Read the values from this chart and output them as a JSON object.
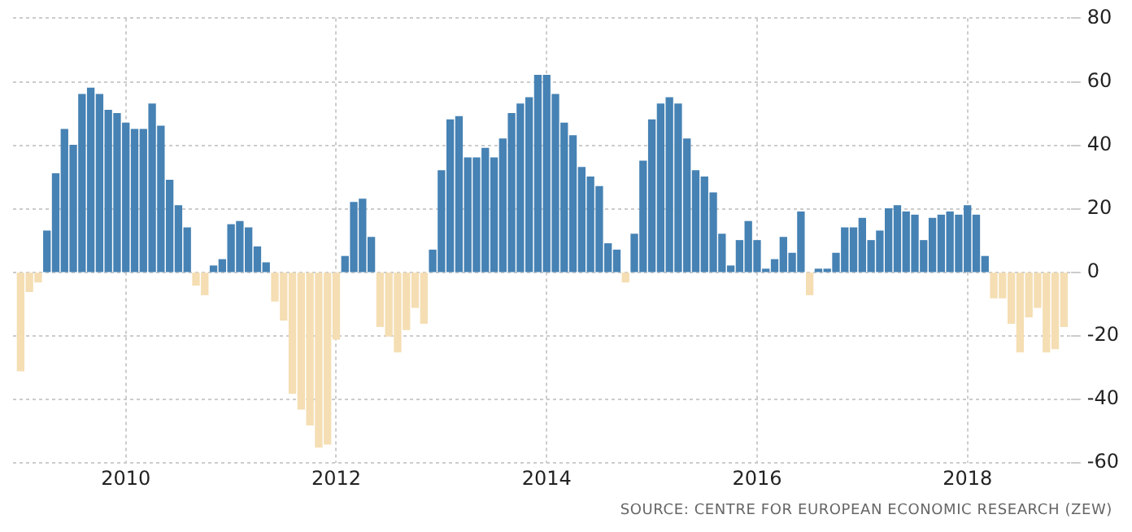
{
  "chart_data": {
    "type": "bar",
    "x": [
      "2009-01",
      "2009-02",
      "2009-03",
      "2009-04",
      "2009-05",
      "2009-06",
      "2009-07",
      "2009-08",
      "2009-09",
      "2009-10",
      "2009-11",
      "2009-12",
      "2010-01",
      "2010-02",
      "2010-03",
      "2010-04",
      "2010-05",
      "2010-06",
      "2010-07",
      "2010-08",
      "2010-09",
      "2010-10",
      "2010-11",
      "2010-12",
      "2011-01",
      "2011-02",
      "2011-03",
      "2011-04",
      "2011-05",
      "2011-06",
      "2011-07",
      "2011-08",
      "2011-09",
      "2011-10",
      "2011-11",
      "2011-12",
      "2012-01",
      "2012-02",
      "2012-03",
      "2012-04",
      "2012-05",
      "2012-06",
      "2012-07",
      "2012-08",
      "2012-09",
      "2012-10",
      "2012-11",
      "2012-12",
      "2013-01",
      "2013-02",
      "2013-03",
      "2013-04",
      "2013-05",
      "2013-06",
      "2013-07",
      "2013-08",
      "2013-09",
      "2013-10",
      "2013-11",
      "2013-12",
      "2014-01",
      "2014-02",
      "2014-03",
      "2014-04",
      "2014-05",
      "2014-06",
      "2014-07",
      "2014-08",
      "2014-09",
      "2014-10",
      "2014-11",
      "2014-12",
      "2015-01",
      "2015-02",
      "2015-03",
      "2015-04",
      "2015-05",
      "2015-06",
      "2015-07",
      "2015-08",
      "2015-09",
      "2015-10",
      "2015-11",
      "2015-12",
      "2016-01",
      "2016-02",
      "2016-03",
      "2016-04",
      "2016-05",
      "2016-06",
      "2016-07",
      "2016-08",
      "2016-09",
      "2016-10",
      "2016-11",
      "2016-12",
      "2017-01",
      "2017-02",
      "2017-03",
      "2017-04",
      "2017-05",
      "2017-06",
      "2017-07",
      "2017-08",
      "2017-09",
      "2017-10",
      "2017-11",
      "2017-12",
      "2018-01",
      "2018-02",
      "2018-03",
      "2018-04",
      "2018-05",
      "2018-06",
      "2018-07",
      "2018-08",
      "2018-09",
      "2018-10",
      "2018-11",
      "2018-12"
    ],
    "values": [
      -31,
      -6,
      -3,
      13,
      31,
      45,
      40,
      56,
      58,
      56,
      51,
      50,
      47,
      45,
      45,
      53,
      46,
      29,
      21,
      14,
      -4,
      -7,
      2,
      4,
      15,
      16,
      14,
      8,
      3,
      -9,
      -15,
      -38,
      -43,
      -48,
      -55,
      -54,
      -21,
      5,
      22,
      23,
      11,
      -17,
      -20,
      -25,
      -18,
      -11,
      -16,
      7,
      32,
      48,
      49,
      36,
      36,
      39,
      36,
      42,
      50,
      53,
      55,
      62,
      62,
      56,
      47,
      43,
      33,
      30,
      27,
      9,
      7,
      -3,
      12,
      35,
      48,
      53,
      55,
      53,
      42,
      32,
      30,
      25,
      12,
      2,
      10,
      16,
      10,
      1,
      4,
      11,
      6,
      19,
      -7,
      1,
      1,
      6,
      14,
      14,
      17,
      10,
      13,
      20,
      21,
      19,
      18,
      10,
      17,
      18,
      19,
      18,
      21,
      18,
      5,
      -8,
      -8,
      -16,
      -25,
      -14,
      -11,
      -25,
      -24,
      -17
    ],
    "colors": [
      "#f5deb3",
      "#f5deb3",
      "#f5deb3",
      "#4682b4",
      "#4682b4",
      "#4682b4",
      "#4682b4",
      "#4682b4",
      "#4682b4",
      "#4682b4",
      "#4682b4",
      "#4682b4",
      "#4682b4",
      "#4682b4",
      "#4682b4",
      "#4682b4",
      "#4682b4",
      "#4682b4",
      "#4682b4",
      "#4682b4",
      "#f5deb3",
      "#f5deb3",
      "#4682b4",
      "#4682b4",
      "#4682b4",
      "#4682b4",
      "#4682b4",
      "#4682b4",
      "#4682b4",
      "#f5deb3",
      "#f5deb3",
      "#f5deb3",
      "#f5deb3",
      "#f5deb3",
      "#f5deb3",
      "#f5deb3",
      "#f5deb3",
      "#4682b4",
      "#4682b4",
      "#4682b4",
      "#4682b4",
      "#f5deb3",
      "#f5deb3",
      "#f5deb3",
      "#f5deb3",
      "#f5deb3",
      "#f5deb3",
      "#4682b4",
      "#4682b4",
      "#4682b4",
      "#4682b4",
      "#4682b4",
      "#4682b4",
      "#4682b4",
      "#4682b4",
      "#4682b4",
      "#4682b4",
      "#4682b4",
      "#4682b4",
      "#4682b4",
      "#4682b4",
      "#4682b4",
      "#4682b4",
      "#4682b4",
      "#4682b4",
      "#4682b4",
      "#4682b4",
      "#4682b4",
      "#4682b4",
      "#f5deb3",
      "#4682b4",
      "#4682b4",
      "#4682b4",
      "#4682b4",
      "#4682b4",
      "#4682b4",
      "#4682b4",
      "#4682b4",
      "#4682b4",
      "#4682b4",
      "#4682b4",
      "#4682b4",
      "#4682b4",
      "#4682b4",
      "#4682b4",
      "#4682b4",
      "#4682b4",
      "#4682b4",
      "#4682b4",
      "#4682b4",
      "#f5deb3",
      "#4682b4",
      "#4682b4",
      "#4682b4",
      "#4682b4",
      "#4682b4",
      "#4682b4",
      "#4682b4",
      "#4682b4",
      "#4682b4",
      "#4682b4",
      "#4682b4",
      "#4682b4",
      "#4682b4",
      "#4682b4",
      "#4682b4",
      "#4682b4",
      "#4682b4",
      "#4682b4",
      "#4682b4",
      "#4682b4",
      "#f5deb3",
      "#f5deb3",
      "#f5deb3",
      "#f5deb3",
      "#f5deb3",
      "#f5deb3",
      "#f5deb3",
      "#f5deb3",
      "#f5deb3"
    ],
    "xlim": [
      "2008-12-05",
      "2018-12-25"
    ],
    "xticks": [
      {
        "value": "2010-01",
        "label": "2010"
      },
      {
        "value": "2012-01",
        "label": "2012"
      },
      {
        "value": "2014-01",
        "label": "2014"
      },
      {
        "value": "2016-01",
        "label": "2016"
      },
      {
        "value": "2018-01",
        "label": "2018"
      }
    ],
    "ylim": [
      -60,
      80
    ],
    "yticks": [
      -60,
      -40,
      -20,
      0,
      20,
      40,
      60,
      80
    ],
    "grid": true,
    "legend": false,
    "annotations": [
      "SOURCE: CENTRE FOR EUROPEAN ECONOMIC RESEARCH (ZEW)"
    ]
  }
}
